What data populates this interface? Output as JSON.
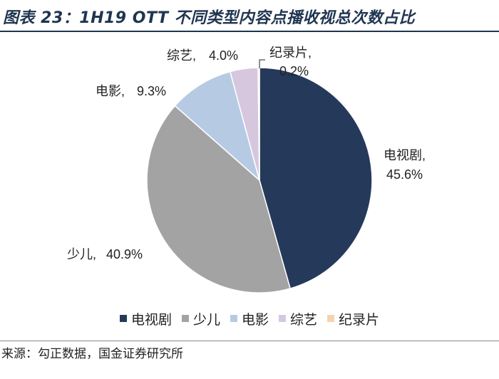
{
  "header": {
    "title": "图表 23：1H19 OTT 不同类型内容点播收视总次数占比"
  },
  "chart_data": {
    "type": "pie",
    "categories": [
      "电视剧",
      "少儿",
      "电影",
      "综艺",
      "纪录片"
    ],
    "values": [
      45.6,
      40.9,
      9.3,
      4.0,
      0.2
    ],
    "unit": "%",
    "colors": [
      "#253a5a",
      "#a3a3a3",
      "#b6cbe3",
      "#d6c7df",
      "#f6d3ae"
    ],
    "labels": [
      {
        "name": "电视剧,",
        "value": "45.6%"
      },
      {
        "name": "少儿,",
        "value": "40.9%"
      },
      {
        "name": "电影,",
        "value": "9.3%"
      },
      {
        "name": "综艺,",
        "value": "4.0%"
      },
      {
        "name": "纪录片,",
        "value": "0.2%"
      }
    ],
    "legend": {
      "placement": "bottom",
      "items": [
        "电视剧",
        "少儿",
        "电影",
        "综艺",
        "纪录片"
      ]
    }
  },
  "footer": {
    "source": "来源：勾正数据，国金证券研究所"
  }
}
